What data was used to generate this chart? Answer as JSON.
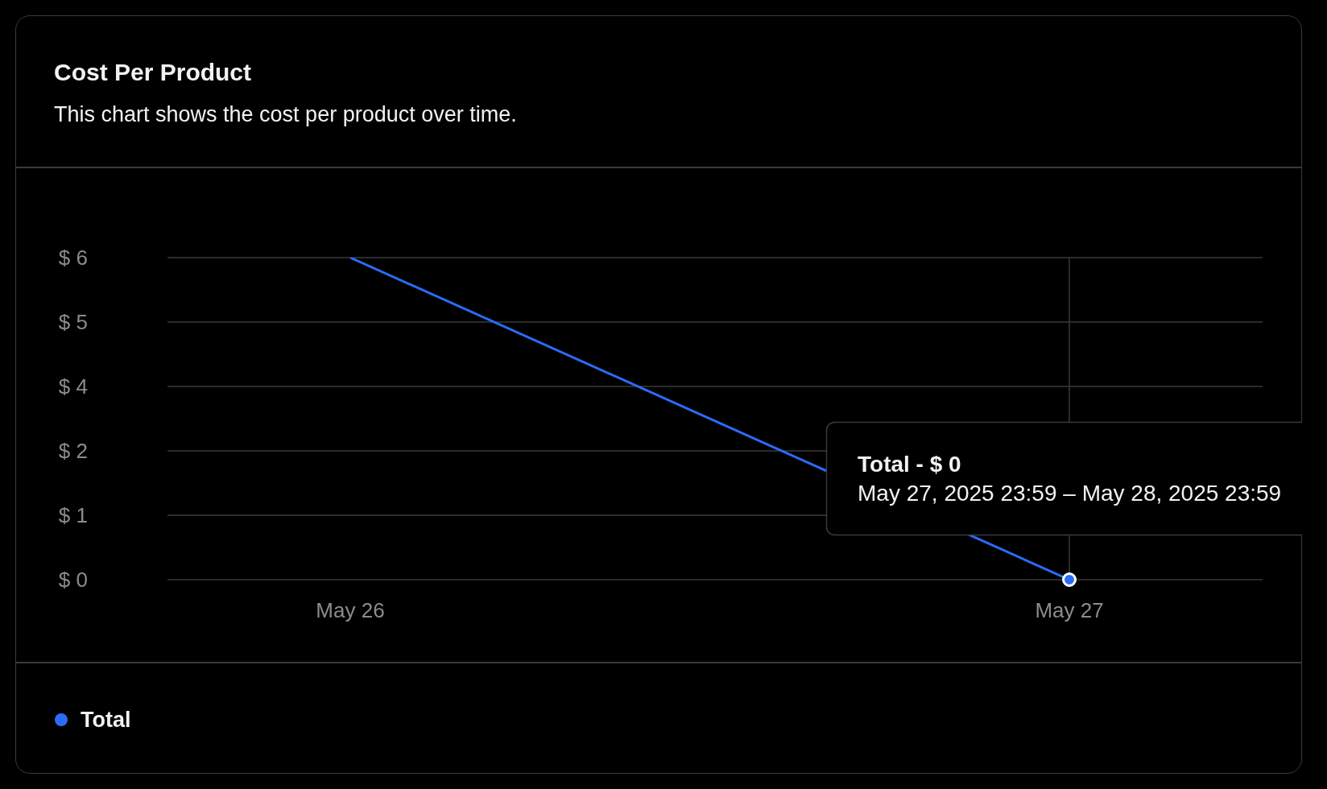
{
  "chart_data": {
    "type": "line",
    "title": "Cost Per Product",
    "subtitle": "This chart shows the cost per product over time.",
    "x": [
      "2025-05-26",
      "2025-05-27"
    ],
    "series": [
      {
        "name": "Total",
        "color": "#2b6cf6",
        "values": [
          6,
          0
        ]
      }
    ],
    "xlim": [
      "2025-05-25T17:54",
      "2025-05-27T06:27"
    ],
    "xticks": [
      {
        "value": "2025-05-26",
        "label": "May 26"
      },
      {
        "value": "2025-05-27",
        "label": "May 27"
      }
    ],
    "ylim": [
      0,
      6
    ],
    "yticks": [
      {
        "value": 0,
        "label": "$ 0"
      },
      {
        "value": 1.2,
        "label": "$ 1"
      },
      {
        "value": 2.4,
        "label": "$ 2"
      },
      {
        "value": 3.6,
        "label": "$ 4"
      },
      {
        "value": 4.8,
        "label": "$ 5"
      },
      {
        "value": 6,
        "label": "$ 6"
      }
    ],
    "grid": "y",
    "legend": "bottom left",
    "line_style": "solid",
    "ref_lines": [
      {
        "axis": "x",
        "value": "2025-05-27",
        "color": "#3a3a3a"
      }
    ],
    "annotations": [
      "Total - $ 0\nMay 27, 2025 23:59 – May 28, 2025 23:59"
    ]
  }
}
